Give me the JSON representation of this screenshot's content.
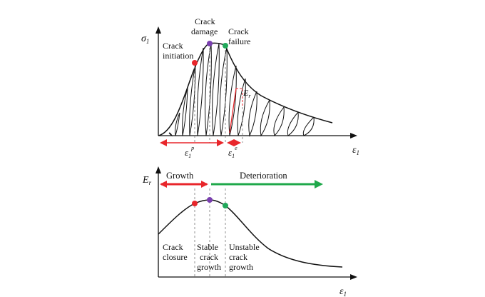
{
  "top_panel": {
    "y_axis_symbol": "σ",
    "y_axis_subscript": "1",
    "x_axis_symbol": "ε",
    "x_axis_subscript": "1",
    "labels": {
      "crack_initiation_line1": "Crack",
      "crack_initiation_line2": "initiation",
      "crack_damage_line1": "Crack",
      "crack_damage_line2": "damage",
      "crack_failure_line1": "Crack",
      "crack_failure_line2": "failure",
      "er_symbol": "E",
      "er_subscript": "r",
      "plastic_strain_symbol": "ε",
      "plastic_strain_sub": "1",
      "plastic_strain_sup": "p",
      "elastic_strain_symbol": "ε",
      "elastic_strain_sub": "1",
      "elastic_strain_sup": "e"
    }
  },
  "bottom_panel": {
    "y_axis_symbol": "E",
    "y_axis_subscript": "r",
    "x_axis_symbol": "ε",
    "x_axis_subscript": "1",
    "growth_label": "Growth",
    "deterioration_label": "Deterioration",
    "stage_1_line1": "Crack",
    "stage_1_line2": "closure",
    "stage_2_line1": "Stable",
    "stage_2_line2": "crack",
    "stage_2_line3": "growth",
    "stage_3_line1": "Unstable",
    "stage_3_line2": "crack",
    "stage_3_line3": "growth"
  },
  "colors": {
    "initiation_point": "#e8262b",
    "damage_point": "#7a3fb0",
    "failure_point": "#21a85a",
    "growth_arrow": "#e8262b",
    "deterioration_arrow": "#1fa84a",
    "strain_arrow": "#e8262b",
    "curve": "#111111"
  }
}
